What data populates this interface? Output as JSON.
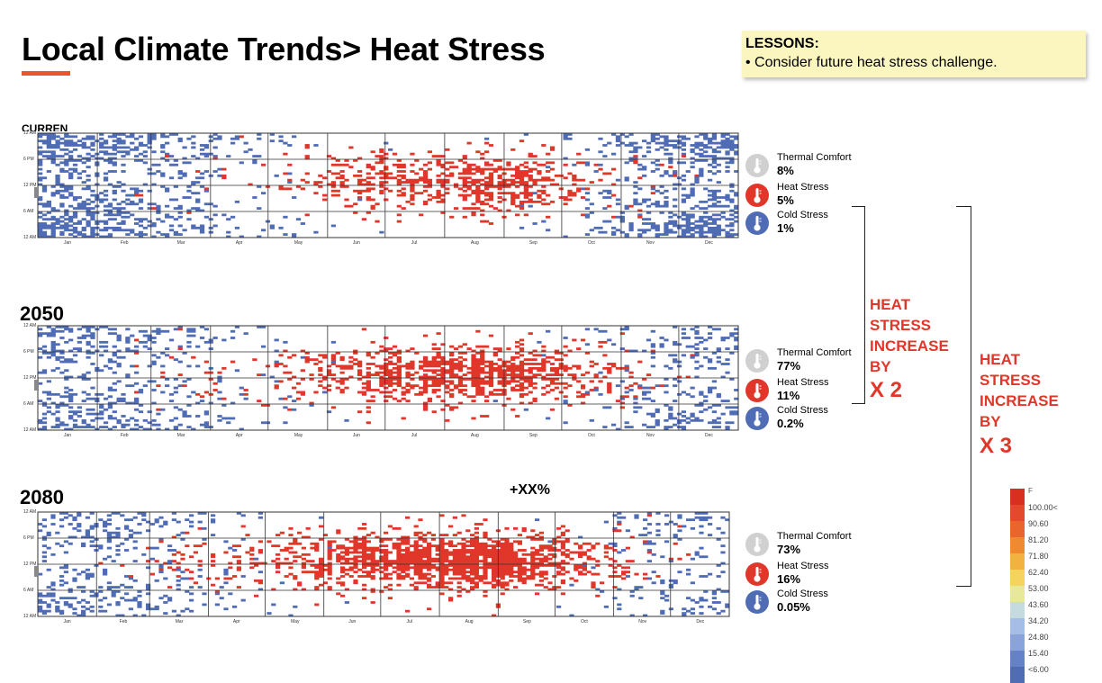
{
  "header": {
    "title": "Local Climate Trends> Heat Stress"
  },
  "lessons": {
    "heading": "LESSONS:",
    "items": [
      "• Consider future heat stress challenge."
    ]
  },
  "chart_data": [
    {
      "type": "heatmap",
      "title": "CURREN",
      "y_ticks": [
        "12 AM",
        "6 PM",
        "12 PM",
        "6 AM",
        "12 AM"
      ],
      "x_ticks": [
        "Jan",
        "Feb",
        "Mar",
        "Apr",
        "May",
        "Jun",
        "Jul",
        "Aug",
        "Sep",
        "Oct",
        "Nov",
        "Dec"
      ],
      "stats": [
        {
          "label": "Thermal Comfort",
          "value": "8%",
          "icon": "thermometer-gray-icon"
        },
        {
          "label": "Heat Stress",
          "value": "5%",
          "icon": "thermometer-red-icon"
        },
        {
          "label": "Cold Stress",
          "value": "1%",
          "icon": "thermometer-blue-icon"
        }
      ],
      "heat_intensity": [
        0,
        0,
        0.04,
        0.03,
        0.08,
        0.28,
        0.42,
        0.55,
        0.45,
        0.1,
        0.03,
        0
      ],
      "cold_intensity": [
        0.7,
        0.55,
        0.3,
        0.15,
        0.06,
        0.01,
        0,
        0,
        0.02,
        0.12,
        0.45,
        0.7
      ]
    },
    {
      "type": "heatmap",
      "title": "2050",
      "y_ticks": [
        "12 AM",
        "6 PM",
        "12 PM",
        "6 AM",
        "12 AM"
      ],
      "x_ticks": [
        "Jan",
        "Feb",
        "Mar",
        "Apr",
        "May",
        "Jun",
        "Jul",
        "Aug",
        "Sep",
        "Oct",
        "Nov",
        "Dec"
      ],
      "stats": [
        {
          "label": "Thermal Comfort",
          "value": "77%",
          "icon": "thermometer-gray-icon"
        },
        {
          "label": "Heat Stress",
          "value": "11%",
          "icon": "thermometer-red-icon"
        },
        {
          "label": "Cold Stress",
          "value": "0.2%",
          "icon": "thermometer-blue-icon"
        }
      ],
      "heat_intensity": [
        0,
        0,
        0.06,
        0.08,
        0.18,
        0.42,
        0.62,
        0.72,
        0.62,
        0.16,
        0.05,
        0
      ],
      "cold_intensity": [
        0.48,
        0.42,
        0.2,
        0.1,
        0.03,
        0,
        0,
        0,
        0.01,
        0.05,
        0.24,
        0.34
      ]
    },
    {
      "type": "heatmap",
      "title": "2080",
      "y_ticks": [
        "12 AM",
        "6 PM",
        "12 PM",
        "6 AM",
        "12 AM"
      ],
      "x_ticks": [
        "Jan",
        "Feb",
        "Mar",
        "Apr",
        "May",
        "Jun",
        "Jul",
        "Aug",
        "Sep",
        "Oct",
        "Nov",
        "Dec"
      ],
      "stats": [
        {
          "label": "Thermal Comfort",
          "value": "73%",
          "icon": "thermometer-gray-icon"
        },
        {
          "label": "Heat Stress",
          "value": "16%",
          "icon": "thermometer-red-icon"
        },
        {
          "label": "Cold Stress",
          "value": "0.05%",
          "icon": "thermometer-blue-icon"
        }
      ],
      "heat_intensity": [
        0,
        0.01,
        0.1,
        0.15,
        0.3,
        0.6,
        0.8,
        0.88,
        0.78,
        0.24,
        0.07,
        0.01
      ],
      "cold_intensity": [
        0.36,
        0.3,
        0.16,
        0.06,
        0.02,
        0,
        0,
        0,
        0,
        0.03,
        0.18,
        0.24
      ]
    }
  ],
  "annotations": {
    "x2": {
      "lines": [
        "HEAT",
        "STRESS",
        "INCREASE",
        "BY"
      ],
      "factor": "X 2"
    },
    "x3": {
      "lines": [
        "HEAT",
        "STRESS",
        "INCREASE",
        "BY"
      ],
      "factor": "X 3"
    },
    "change": "+XX%"
  },
  "scale": {
    "unit": "F",
    "ticks": [
      "100.00<",
      "90.60",
      "81.20",
      "71.80",
      "62.40",
      "53.00",
      "43.60",
      "34.20",
      "24.80",
      "15.40",
      "<6.00"
    ],
    "colors": [
      "#d7301f",
      "#e34a2c",
      "#e8652e",
      "#ee8a31",
      "#f2b140",
      "#f4d35e",
      "#e8e89a",
      "#c6dbe0",
      "#a6bde6",
      "#8aa3dc",
      "#6582c8",
      "#4f6cb5"
    ]
  },
  "colors": {
    "heat": "#e0372a",
    "cold": "#4f6cb5",
    "accent": "#e8562a"
  }
}
